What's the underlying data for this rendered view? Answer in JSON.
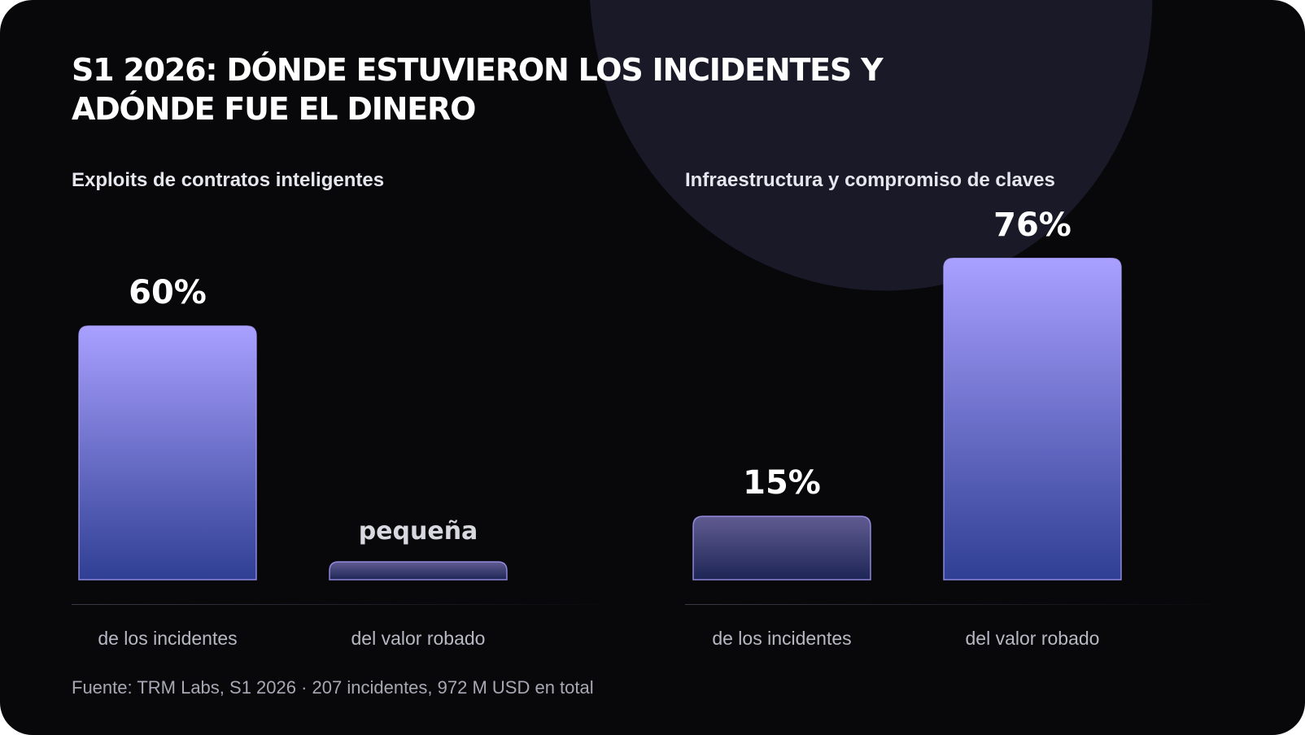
{
  "title_line1": "S1 2026: DÓNDE ESTUVIERON LOS INCIDENTES Y",
  "title_line2": "ADÓNDE FUE EL DINERO",
  "source": "Fuente: TRM Labs, S1 2026 · 207 incidentes, 972 M USD en total",
  "colors": {
    "bar_top": "#a9a0ff",
    "bar_bottom": "#2f3f93",
    "background": "#08080b"
  },
  "chart_data": [
    {
      "type": "bar",
      "title": "Exploits de contratos inteligentes",
      "categories": [
        "de los incidentes",
        "del valor robado"
      ],
      "values": [
        60,
        3
      ],
      "value_labels": [
        "60%",
        "pequeña"
      ],
      "ylim": [
        0,
        100
      ]
    },
    {
      "type": "bar",
      "title": "Infraestructura y compromiso de claves",
      "categories": [
        "de los incidentes",
        "del valor robado"
      ],
      "values": [
        15,
        76
      ],
      "value_labels": [
        "15%",
        "76%"
      ],
      "ylim": [
        0,
        100
      ]
    }
  ]
}
